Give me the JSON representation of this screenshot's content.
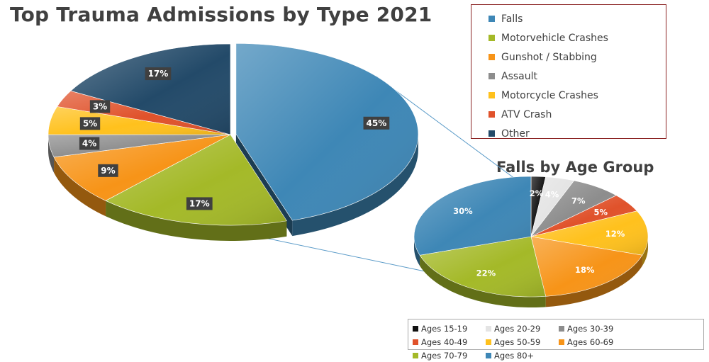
{
  "chart_data": [
    {
      "type": "pie",
      "title": "Top Trauma Admissions by Type 2021",
      "legend_position": "top-right",
      "slices": [
        {
          "name": "Falls",
          "value": 45,
          "label": "45%",
          "color": "#3e87b6"
        },
        {
          "name": "Motorvehicle Crashes",
          "value": 17,
          "label": "17%",
          "color": "#a4b928"
        },
        {
          "name": "Gunshot / Stabbing",
          "value": 9,
          "label": "9%",
          "color": "#f79418"
        },
        {
          "name": "Assault",
          "value": 4,
          "label": "4%",
          "color": "#8d8d8d"
        },
        {
          "name": "Motorcycle Crashes",
          "value": 5,
          "label": "5%",
          "color": "#ffc11d"
        },
        {
          "name": "ATV Crash",
          "value": 3,
          "label": "3%",
          "color": "#e0522b"
        },
        {
          "name": "Other",
          "value": 17,
          "label": "17%",
          "color": "#234a69"
        }
      ]
    },
    {
      "type": "pie",
      "title": "Falls by Age Group",
      "legend_position": "bottom",
      "slices": [
        {
          "name": "Ages 15-19",
          "value": 2,
          "label": "2%",
          "color": "#111111"
        },
        {
          "name": "Ages 20-29",
          "value": 4,
          "label": "4%",
          "color": "#e4e4e4"
        },
        {
          "name": "Ages 30-39",
          "value": 7,
          "label": "7%",
          "color": "#8d8d8d"
        },
        {
          "name": "Ages 40-49",
          "value": 5,
          "label": "5%",
          "color": "#e0522b"
        },
        {
          "name": "Ages 50-59",
          "value": 12,
          "label": "12%",
          "color": "#ffc11d"
        },
        {
          "name": "Ages 60-69",
          "value": 18,
          "label": "18%",
          "color": "#f79418"
        },
        {
          "name": "Ages 70-79",
          "value": 22,
          "label": "22%",
          "color": "#a4b928"
        },
        {
          "name": "Ages 80+",
          "value": 30,
          "label": "30%",
          "color": "#3e87b6"
        }
      ]
    }
  ]
}
